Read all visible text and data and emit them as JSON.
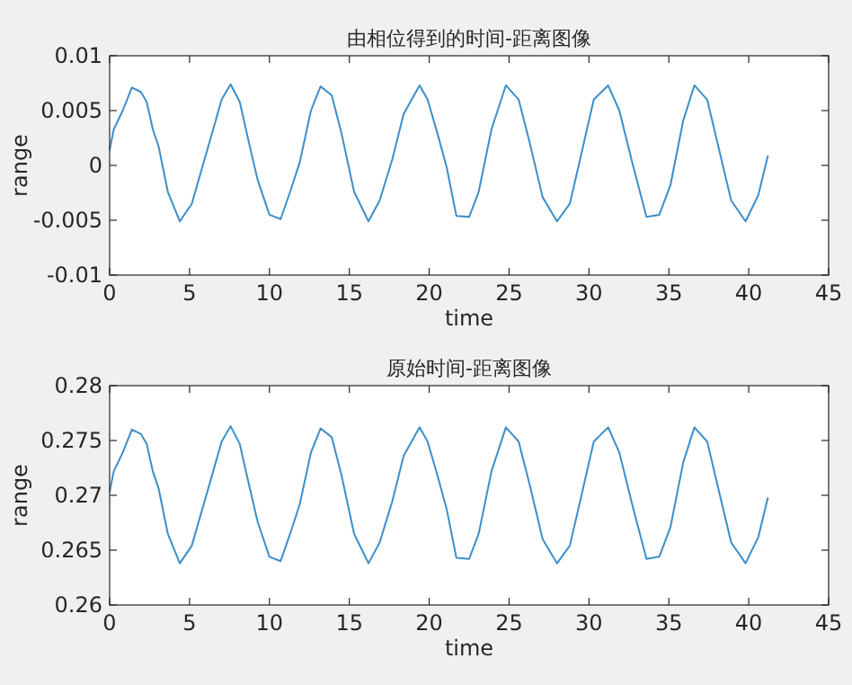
{
  "chart_data": [
    {
      "type": "line",
      "title": "由相位得到的时间-距离图像",
      "xlabel": "time",
      "ylabel": "range",
      "xlim": [
        0,
        45
      ],
      "xticks": [
        0,
        5,
        10,
        15,
        20,
        25,
        30,
        35,
        40,
        45
      ],
      "ylim": [
        -0.01,
        0.01
      ],
      "yticks": [
        -0.01,
        -0.005,
        0,
        0.005,
        0.01
      ],
      "series": [
        {
          "color": "#3b8fc9",
          "x": [
            0,
            0.26,
            0.82,
            1.39,
            1.95,
            2.32,
            2.7,
            3.07,
            3.64,
            4.39,
            5.14,
            5.89,
            6.64,
            7.01,
            7.57,
            8.14,
            8.7,
            9.26,
            10.0,
            10.7,
            11.3,
            11.9,
            12.6,
            13.2,
            13.9,
            14.5,
            15.3,
            16.2,
            16.9,
            17.7,
            18.4,
            19.4,
            19.9,
            20.5,
            21.1,
            21.7,
            22.5,
            23.1,
            23.9,
            24.8,
            25.6,
            26.3,
            27.1,
            28.0,
            28.8,
            29.5,
            30.3,
            31.2,
            31.9,
            32.7,
            33.6,
            34.4,
            35.1,
            35.9,
            36.6,
            37.4,
            38.1,
            38.9,
            39.8,
            40.6,
            41.2
          ],
          "values": [
            0.0014,
            0.0033,
            0.005,
            0.0071,
            0.0067,
            0.0058,
            0.0033,
            0.0017,
            -0.0024,
            -0.0051,
            -0.0035,
            0.0003,
            0.0041,
            0.006,
            0.0074,
            0.0058,
            0.0022,
            -0.0013,
            -0.0045,
            -0.0049,
            -0.0024,
            0.0003,
            0.005,
            0.0072,
            0.0064,
            0.003,
            -0.0024,
            -0.0051,
            -0.0032,
            0.0006,
            0.0047,
            0.0073,
            0.006,
            0.003,
            -0.0002,
            -0.0046,
            -0.0047,
            -0.0024,
            0.0033,
            0.0073,
            0.006,
            0.002,
            -0.0029,
            -0.0051,
            -0.0035,
            0.0009,
            0.006,
            0.0073,
            0.005,
            0.0003,
            -0.0047,
            -0.0045,
            -0.0018,
            0.0041,
            0.0073,
            0.006,
            0.0017,
            -0.0032,
            -0.0051,
            -0.0027,
            0.0009
          ]
        }
      ]
    },
    {
      "type": "line",
      "title": "原始时间-距离图像",
      "xlabel": "time",
      "ylabel": "range",
      "xlim": [
        0,
        45
      ],
      "xticks": [
        0,
        5,
        10,
        15,
        20,
        25,
        30,
        35,
        40,
        45
      ],
      "ylim": [
        0.26,
        0.28
      ],
      "yticks": [
        0.26,
        0.265,
        0.27,
        0.275,
        0.28
      ],
      "series": [
        {
          "color": "#3b8fc9",
          "x": [
            0,
            0.26,
            0.82,
            1.39,
            1.95,
            2.32,
            2.7,
            3.07,
            3.64,
            4.39,
            5.14,
            5.89,
            6.64,
            7.01,
            7.57,
            8.14,
            8.7,
            9.26,
            10.0,
            10.7,
            11.3,
            11.9,
            12.6,
            13.2,
            13.9,
            14.5,
            15.3,
            16.2,
            16.9,
            17.7,
            18.4,
            19.4,
            19.9,
            20.5,
            21.1,
            21.7,
            22.5,
            23.1,
            23.9,
            24.8,
            25.6,
            26.3,
            27.1,
            28.0,
            28.8,
            29.5,
            30.3,
            31.2,
            31.9,
            32.7,
            33.6,
            34.4,
            35.1,
            35.9,
            36.6,
            37.4,
            38.1,
            38.9,
            39.8,
            40.6,
            41.2
          ],
          "values": [
            0.2703,
            0.2722,
            0.2739,
            0.276,
            0.2756,
            0.2747,
            0.2722,
            0.2706,
            0.2665,
            0.2638,
            0.2654,
            0.2692,
            0.273,
            0.2749,
            0.2763,
            0.2747,
            0.2711,
            0.2676,
            0.2644,
            0.264,
            0.2665,
            0.2692,
            0.2739,
            0.2761,
            0.2753,
            0.2719,
            0.2665,
            0.2638,
            0.2657,
            0.2695,
            0.2736,
            0.2762,
            0.2749,
            0.2719,
            0.2687,
            0.2643,
            0.2642,
            0.2665,
            0.2722,
            0.2762,
            0.2749,
            0.2709,
            0.266,
            0.2638,
            0.2654,
            0.2698,
            0.2749,
            0.2762,
            0.2739,
            0.2692,
            0.2642,
            0.2644,
            0.2671,
            0.273,
            0.2762,
            0.2749,
            0.2706,
            0.2657,
            0.2638,
            0.2662,
            0.2698
          ]
        }
      ]
    }
  ]
}
